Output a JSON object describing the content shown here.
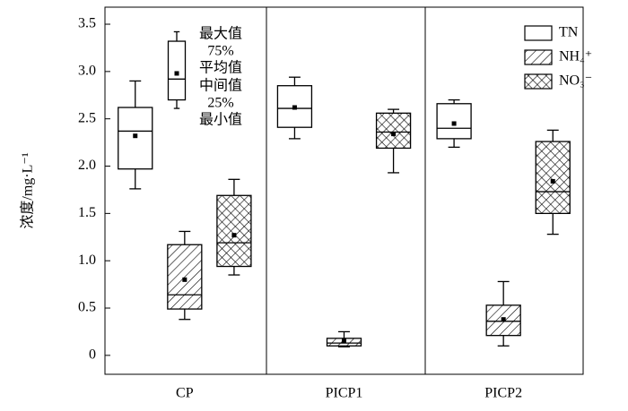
{
  "chart_data": {
    "type": "box",
    "ylabel": "浓度/mg·L⁻¹",
    "categories": [
      "CP",
      "PICP1",
      "PICP2"
    ],
    "series": [
      {
        "name": "TN",
        "pattern": "none",
        "color": "#000000",
        "values": [
          {
            "min": 1.76,
            "q1": 1.97,
            "median": 2.37,
            "q3": 2.62,
            "max": 2.9,
            "mean": 2.32
          },
          {
            "min": 2.29,
            "q1": 2.41,
            "median": 2.61,
            "q3": 2.85,
            "max": 2.94,
            "mean": 2.62
          },
          {
            "min": 2.2,
            "q1": 2.29,
            "median": 2.4,
            "q3": 2.66,
            "max": 2.7,
            "mean": 2.45
          }
        ]
      },
      {
        "name": "NH₄⁺",
        "pattern": "hatch",
        "color": "#000000",
        "values": [
          {
            "min": 0.38,
            "q1": 0.49,
            "median": 0.64,
            "q3": 1.17,
            "max": 1.31,
            "mean": 0.8
          },
          {
            "min": 0.09,
            "q1": 0.1,
            "median": 0.13,
            "q3": 0.18,
            "max": 0.25,
            "mean": 0.15
          },
          {
            "min": 0.1,
            "q1": 0.21,
            "median": 0.36,
            "q3": 0.53,
            "max": 0.78,
            "mean": 0.38
          }
        ]
      },
      {
        "name": "NO₃⁻",
        "pattern": "crosshatch",
        "color": "#000000",
        "values": [
          {
            "min": 0.85,
            "q1": 0.94,
            "median": 1.19,
            "q3": 1.69,
            "max": 1.86,
            "mean": 1.27
          },
          {
            "min": 1.93,
            "q1": 2.19,
            "median": 2.36,
            "q3": 2.56,
            "max": 2.6,
            "mean": 2.34
          },
          {
            "min": 1.28,
            "q1": 1.5,
            "median": 1.73,
            "q3": 2.26,
            "max": 2.38,
            "mean": 1.84
          }
        ]
      }
    ],
    "key": {
      "labels": [
        "最大值",
        "75%",
        "平均值",
        "中间值",
        "25%",
        "最小值"
      ],
      "box": {
        "min": 2.61,
        "q1": 2.7,
        "median": 2.92,
        "q3": 3.32,
        "max": 3.42,
        "mean": 2.98
      }
    },
    "ylim": [
      -0.2,
      3.68
    ],
    "yticks": [
      0,
      0.5,
      {
        "value": 1,
        "label": "1.0"
      },
      1.5,
      {
        "value": 2,
        "label": "2.0"
      },
      2.5,
      {
        "value": 3,
        "label": "3.0"
      },
      3.5
    ],
    "legend": "upper right"
  }
}
